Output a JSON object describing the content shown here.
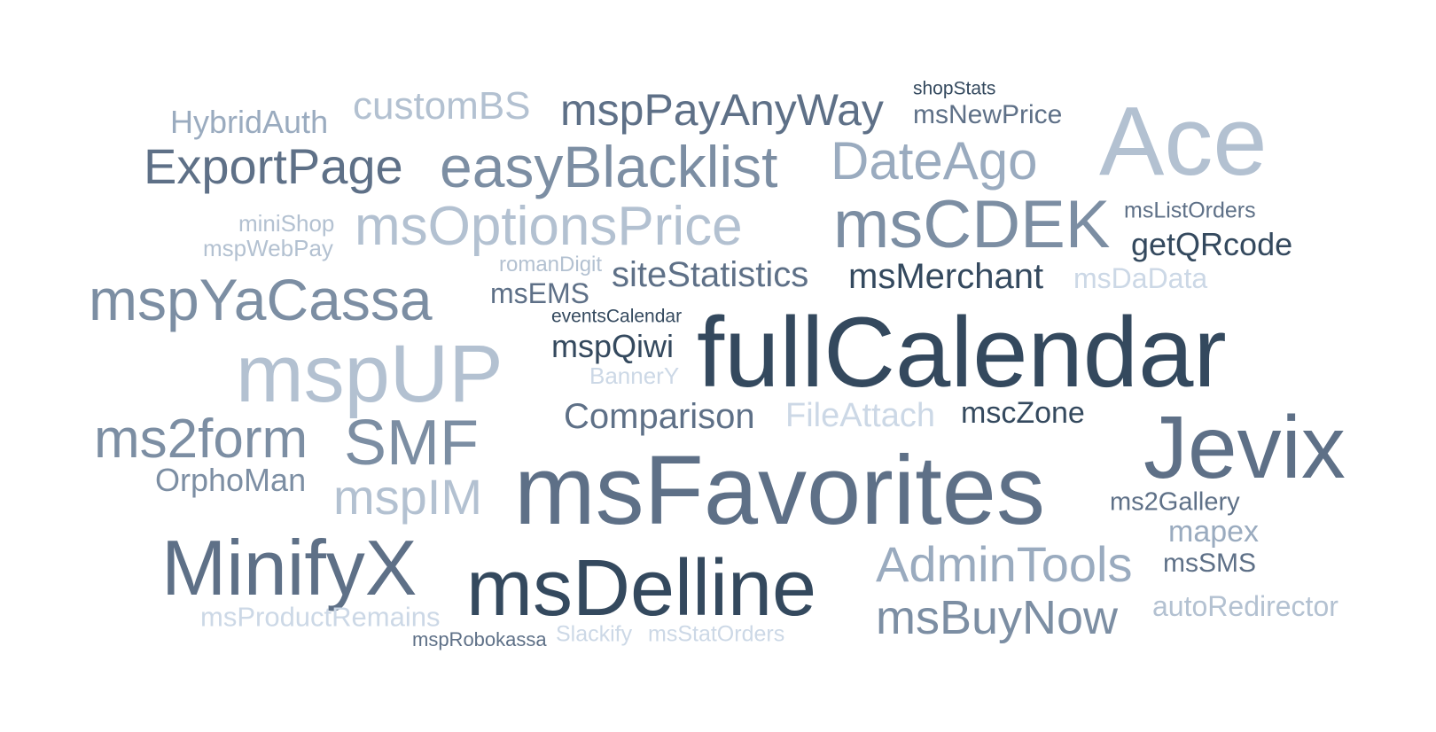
{
  "cloud": {
    "colors": {
      "darkest": "#34495e",
      "dark": "#4d6076",
      "mid": "#5e7087",
      "mid_light": "#7c8ea3",
      "light": "#9aabbf",
      "lighter": "#b3c1d1",
      "lightest": "#ccd8e6"
    },
    "words": [
      {
        "text": "shopStats",
        "color": "darkest"
      },
      {
        "text": "customBS",
        "color": "lighter"
      },
      {
        "text": "mspPayAnyWay",
        "color": "mid"
      },
      {
        "text": "msNewPrice",
        "color": "mid"
      },
      {
        "text": "HybridAuth",
        "color": "light"
      },
      {
        "text": "Ace",
        "color": "lighter"
      },
      {
        "text": "ExportPage",
        "color": "mid"
      },
      {
        "text": "easyBlacklist",
        "color": "mid_light"
      },
      {
        "text": "DateAgo",
        "color": "light"
      },
      {
        "text": "msListOrders",
        "color": "mid"
      },
      {
        "text": "miniShop",
        "color": "lighter"
      },
      {
        "text": "msOptionsPrice",
        "color": "lighter"
      },
      {
        "text": "msCDEK",
        "color": "mid_light"
      },
      {
        "text": "getQRcode",
        "color": "darkest"
      },
      {
        "text": "mspWebPay",
        "color": "lighter"
      },
      {
        "text": "romanDigit",
        "color": "lighter"
      },
      {
        "text": "siteStatistics",
        "color": "mid"
      },
      {
        "text": "msMerchant",
        "color": "darkest"
      },
      {
        "text": "msDaData",
        "color": "lightest"
      },
      {
        "text": "mspYaCassa",
        "color": "mid_light"
      },
      {
        "text": "msEMS",
        "color": "mid"
      },
      {
        "text": "eventsCalendar",
        "color": "darkest"
      },
      {
        "text": "fullCalendar",
        "color": "darkest"
      },
      {
        "text": "mspUP",
        "color": "lighter"
      },
      {
        "text": "mspQiwi",
        "color": "darkest"
      },
      {
        "text": "BannerY",
        "color": "lightest"
      },
      {
        "text": "Comparison",
        "color": "mid"
      },
      {
        "text": "FileAttach",
        "color": "lightest"
      },
      {
        "text": "mscZone",
        "color": "darkest"
      },
      {
        "text": "ms2form",
        "color": "mid_light"
      },
      {
        "text": "SMF",
        "color": "mid_light"
      },
      {
        "text": "Jevix",
        "color": "mid"
      },
      {
        "text": "OrphoMan",
        "color": "mid_light"
      },
      {
        "text": "mspIM",
        "color": "lighter"
      },
      {
        "text": "msFavorites",
        "color": "mid"
      },
      {
        "text": "ms2Gallery",
        "color": "mid"
      },
      {
        "text": "mapex",
        "color": "light"
      },
      {
        "text": "MinifyX",
        "color": "mid"
      },
      {
        "text": "msDelline",
        "color": "darkest"
      },
      {
        "text": "AdminTools",
        "color": "light"
      },
      {
        "text": "msSMS",
        "color": "mid"
      },
      {
        "text": "msBuyNow",
        "color": "mid_light"
      },
      {
        "text": "autoRedirector",
        "color": "lighter"
      },
      {
        "text": "msProductRemains",
        "color": "lightest"
      },
      {
        "text": "mspRobokassa",
        "color": "mid"
      },
      {
        "text": "Slackify",
        "color": "lightest"
      },
      {
        "text": "msStatOrders",
        "color": "lightest"
      }
    ]
  }
}
